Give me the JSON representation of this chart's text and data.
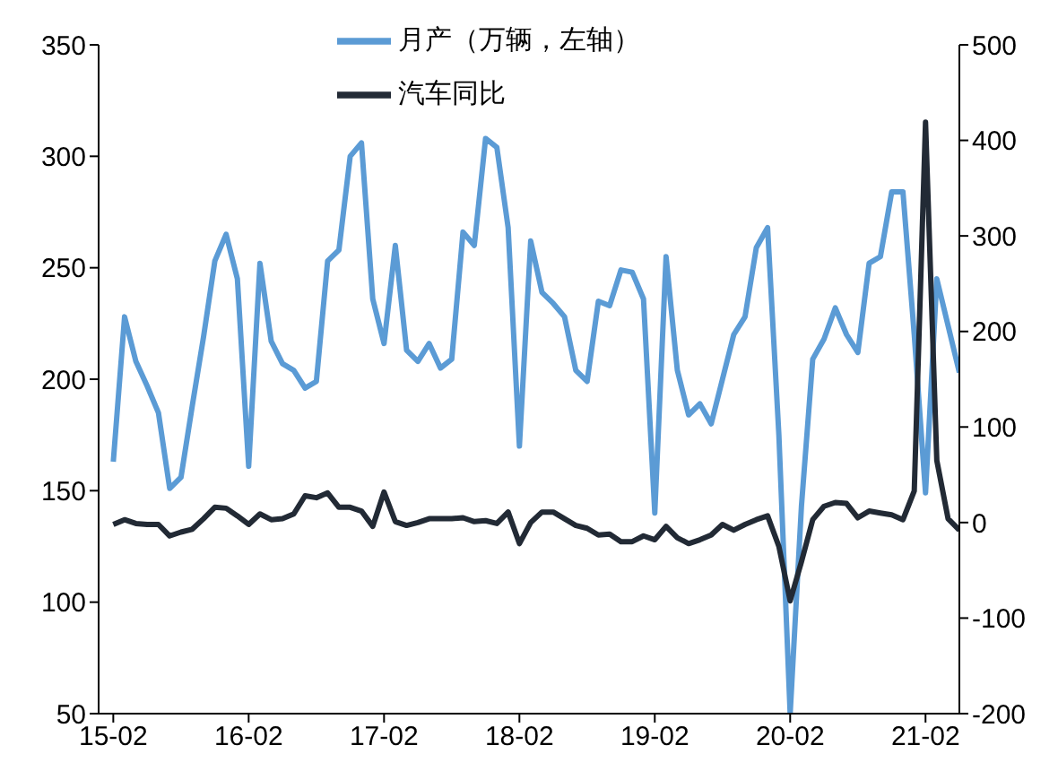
{
  "chart_data": {
    "type": "line",
    "categories": [
      "15-02",
      null,
      null,
      null,
      null,
      null,
      null,
      null,
      null,
      null,
      null,
      null,
      "16-02",
      null,
      null,
      null,
      null,
      null,
      null,
      null,
      null,
      null,
      null,
      null,
      "17-02",
      null,
      null,
      null,
      null,
      null,
      null,
      null,
      null,
      null,
      null,
      null,
      "18-02",
      null,
      null,
      null,
      null,
      null,
      null,
      null,
      null,
      null,
      null,
      null,
      "19-02",
      null,
      null,
      null,
      null,
      null,
      null,
      null,
      null,
      null,
      null,
      null,
      "20-02",
      null,
      null,
      null,
      null,
      null,
      null,
      null,
      null,
      null,
      null,
      null,
      "21-02",
      null,
      null,
      null
    ],
    "series": [
      {
        "name": "月产（万辆，左轴）",
        "color": "#5b9bd5",
        "values": [
          163,
          228,
          208,
          197,
          185,
          151,
          156,
          188,
          219,
          253,
          265,
          245,
          161,
          252,
          217,
          207,
          204,
          196,
          199,
          253,
          258,
          300,
          306,
          236,
          216,
          260,
          213,
          208,
          216,
          205,
          209,
          266,
          260,
          308,
          304,
          268,
          170,
          262,
          239,
          234,
          228,
          204,
          199,
          235,
          233,
          249,
          248,
          236,
          140,
          255,
          204,
          184,
          189,
          180,
          200,
          220,
          228,
          259,
          268,
          175,
          50,
          143,
          209,
          218,
          232,
          220,
          212,
          252,
          255,
          284,
          284,
          220,
          149,
          245,
          224,
          203
        ]
      },
      {
        "name": "汽车同比",
        "color": "#222a35",
        "axis": "y2",
        "values": [
          -2,
          3,
          -1,
          -2,
          -2,
          -14,
          -10,
          -7,
          4,
          16,
          15,
          7,
          -2,
          9,
          3,
          4,
          9,
          28,
          26,
          31,
          16,
          16,
          12,
          -4,
          32,
          1,
          -3,
          0,
          4,
          4,
          4,
          5,
          1,
          2,
          -1,
          11,
          -22,
          0,
          11,
          11,
          4,
          -3,
          -6,
          -13,
          -12,
          -20,
          -20,
          -14,
          -18,
          -4,
          -16,
          -22,
          -18,
          -13,
          -2,
          -8,
          -2,
          3,
          7,
          -25,
          -82,
          -41,
          3,
          17,
          21,
          20,
          5,
          12,
          10,
          8,
          3,
          33,
          419,
          65,
          4,
          -8
        ]
      }
    ],
    "ylim": [
      50,
      350
    ],
    "yticks": [
      50,
      100,
      150,
      200,
      250,
      300,
      350
    ],
    "y2lim": [
      -200,
      500
    ],
    "y2ticks": [
      -200,
      -100,
      0,
      100,
      200,
      300,
      400,
      500
    ],
    "grid": false,
    "legend": "top",
    "marker": "none",
    "line_style": "solid"
  }
}
